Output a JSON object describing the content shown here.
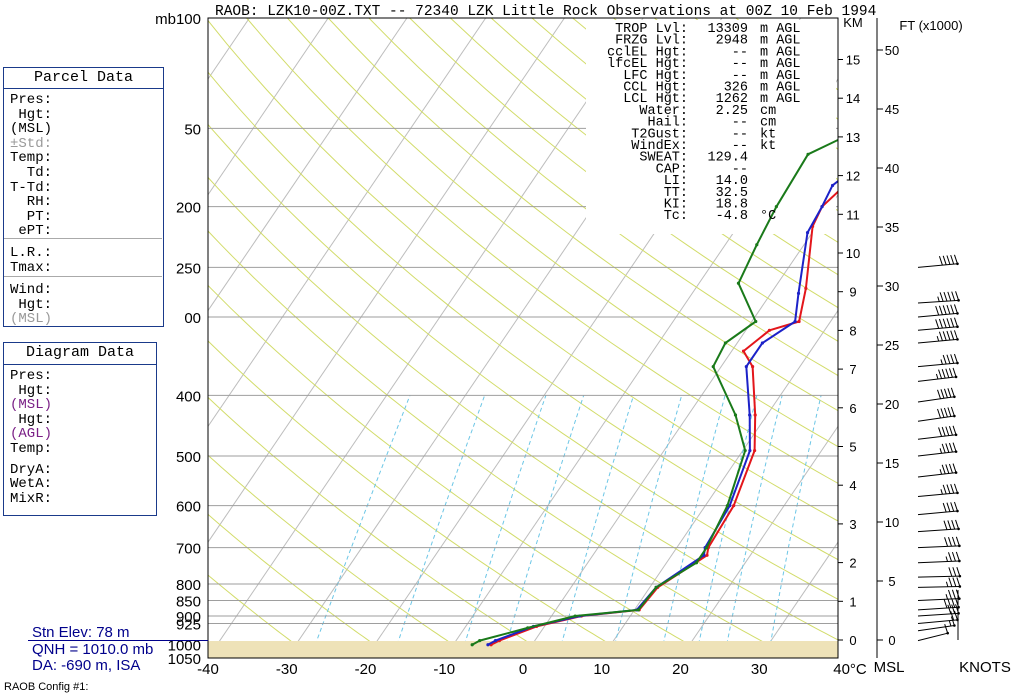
{
  "header": {
    "title": "RAOB:  LZK10-00Z.TXT  --  72340 LZK Little Rock Observations at 00Z 10 Feb 1994"
  },
  "parcel_panel": {
    "title": "Parcel Data",
    "labels": [
      "Pres:",
      " Hgt:",
      "(MSL)",
      "±Std:",
      "Temp:",
      "  Td:",
      "T-Td:",
      "  RH:",
      "  PT:",
      " ePT:",
      "L.R.:",
      "Tmax:",
      "Wind:",
      " Hgt:",
      "(MSL)"
    ]
  },
  "diagram_panel": {
    "title": "Diagram Data",
    "labels": [
      "Pres:",
      " Hgt:",
      "(MSL)",
      " Hgt:",
      "(AGL)",
      "Temp:",
      "DryA:",
      "WetA:",
      "MixR:"
    ]
  },
  "station": {
    "elev": "Stn Elev: 78 m",
    "qnh": "QNH = 1010.0 mb",
    "da": "DA: -690 m, ISA"
  },
  "config_label": "RAOB Config #1:",
  "indices": [
    {
      "label": "TROP Lvl:",
      "value": "13309",
      "unit": "m AGL"
    },
    {
      "label": "FRZG Lvl:",
      "value": "2948",
      "unit": "m AGL"
    },
    {
      "label": "cclEL Hgt:",
      "value": "--",
      "unit": "m AGL"
    },
    {
      "label": "lfcEL Hgt:",
      "value": "--",
      "unit": "m AGL"
    },
    {
      "label": "LFC Hgt:",
      "value": "--",
      "unit": "m AGL"
    },
    {
      "label": "CCL Hgt:",
      "value": "326",
      "unit": "m AGL"
    },
    {
      "label": "LCL Hgt:",
      "value": "1262",
      "unit": "m AGL"
    },
    {
      "label": "Water:",
      "value": "2.25",
      "unit": "cm"
    },
    {
      "label": "Hail:",
      "value": "--",
      "unit": "cm"
    },
    {
      "label": "T2Gust:",
      "value": "--",
      "unit": "kt"
    },
    {
      "label": "WindEx:",
      "value": "--",
      "unit": "kt"
    },
    {
      "label": "SWEAT:",
      "value": "129.4",
      "unit": ""
    },
    {
      "label": "CAP:",
      "value": "--",
      "unit": ""
    },
    {
      "label": "LI:",
      "value": "14.0",
      "unit": ""
    },
    {
      "label": "TT:",
      "value": "32.5",
      "unit": ""
    },
    {
      "label": "KI:",
      "value": "18.8",
      "unit": ""
    },
    {
      "label": "Tc:",
      "value": "-4.8",
      "unit": "°C"
    }
  ],
  "chart_data": {
    "type": "line",
    "title": "",
    "xlabel": "°C",
    "ylabel": "mb",
    "xlim": [
      -40,
      40
    ],
    "ylim": [
      1050,
      100
    ],
    "x_ticks": [
      "-40",
      "-30",
      "-20",
      "-10",
      "0",
      "10",
      "20",
      "30",
      "40°C"
    ],
    "p_ticks": [
      {
        "p": 100,
        "label": "mb100"
      },
      {
        "p": 150,
        "label": "50"
      },
      {
        "p": 200,
        "label": "200"
      },
      {
        "p": 250,
        "label": "250"
      },
      {
        "p": 300,
        "label": "00"
      },
      {
        "p": 400,
        "label": "400"
      },
      {
        "p": 500,
        "label": "500"
      },
      {
        "p": 600,
        "label": "600"
      },
      {
        "p": 700,
        "label": "700"
      },
      {
        "p": 800,
        "label": "800"
      },
      {
        "p": 850,
        "label": "850"
      },
      {
        "p": 900,
        "label": "900"
      },
      {
        "p": 925,
        "label": "925"
      },
      {
        "p": 1000,
        "label": "1000"
      },
      {
        "p": 1050,
        "label": "1050"
      }
    ],
    "km_ticks": [
      "KM",
      "15",
      "14",
      "13",
      "12",
      "11",
      "10",
      "9",
      "8",
      "7",
      "6",
      "5",
      "4",
      "3",
      "2",
      "1",
      "0"
    ],
    "ft_ticks": [
      "FT (x1000)",
      "50",
      "45",
      "40",
      "35",
      "30",
      "25",
      "20",
      "15",
      "10",
      "5",
      "0"
    ],
    "bottom_labels": {
      "msl": "MSL",
      "knots": "KNOTS"
    },
    "series": [
      {
        "color": "#e3161b",
        "x": [
          -5.2,
          -4.5,
          -1.0,
          3.8,
          10.6,
          11.0,
          14.5,
          14.0,
          13.6,
          11.5,
          8.5,
          4.0,
          1.5,
          3.0,
          6.0,
          4.0,
          -0.5,
          -1.0,
          2.0,
          3.5
        ],
        "p": [
          1000,
          985,
          935,
          900,
          880,
          810,
          720,
          700,
          600,
          490,
          430,
          360,
          340,
          315,
          305,
          270,
          215,
          200,
          160,
          145
        ]
      },
      {
        "color": "#1c22c8",
        "x": [
          -5.6,
          -5.0,
          -1.4,
          3.6,
          10.3,
          10.8,
          14.1,
          13.6,
          13.1,
          10.9,
          7.8,
          3.2,
          3.2,
          5.5,
          3.5,
          -0.6,
          -1.0,
          -1.5,
          1.5,
          3.8
        ],
        "p": [
          1000,
          985,
          935,
          900,
          880,
          810,
          720,
          700,
          600,
          490,
          430,
          360,
          330,
          305,
          275,
          220,
          200,
          185,
          160,
          145
        ]
      },
      {
        "color": "#1a7a1a",
        "x": [
          -7.6,
          -7.0,
          -2.0,
          3.0,
          10.5,
          10.8,
          13.8,
          13.8,
          12.8,
          10.3,
          6.0,
          -1.0,
          -1.5,
          0.5,
          -5.0,
          -6.0,
          -6.8,
          -7.3,
          -1.0,
          -2.3
        ],
        "p": [
          1000,
          985,
          940,
          900,
          880,
          810,
          740,
          700,
          600,
          490,
          430,
          360,
          330,
          305,
          265,
          230,
          200,
          165,
          145,
          140
        ]
      }
    ],
    "wind_barbs": [
      {
        "p": 985,
        "dir": 225,
        "kt": 10
      },
      {
        "p": 950,
        "dir": 240,
        "kt": 15
      },
      {
        "p": 925,
        "dir": 250,
        "kt": 20
      },
      {
        "p": 900,
        "dir": 255,
        "kt": 30
      },
      {
        "p": 880,
        "dir": 255,
        "kt": 40
      },
      {
        "p": 850,
        "dir": 260,
        "kt": 35
      },
      {
        "p": 810,
        "dir": 265,
        "kt": 35
      },
      {
        "p": 780,
        "dir": 265,
        "kt": 30
      },
      {
        "p": 740,
        "dir": 260,
        "kt": 35
      },
      {
        "p": 700,
        "dir": 260,
        "kt": 40
      },
      {
        "p": 660,
        "dir": 255,
        "kt": 40
      },
      {
        "p": 620,
        "dir": 250,
        "kt": 40
      },
      {
        "p": 580,
        "dir": 250,
        "kt": 45
      },
      {
        "p": 540,
        "dir": 245,
        "kt": 45
      },
      {
        "p": 500,
        "dir": 245,
        "kt": 45
      },
      {
        "p": 470,
        "dir": 245,
        "kt": 50
      },
      {
        "p": 440,
        "dir": 240,
        "kt": 50
      },
      {
        "p": 410,
        "dir": 240,
        "kt": 50
      },
      {
        "p": 380,
        "dir": 245,
        "kt": 55
      },
      {
        "p": 360,
        "dir": 250,
        "kt": 45
      },
      {
        "p": 330,
        "dir": 250,
        "kt": 55
      },
      {
        "p": 315,
        "dir": 250,
        "kt": 60
      },
      {
        "p": 300,
        "dir": 250,
        "kt": 60
      },
      {
        "p": 285,
        "dir": 255,
        "kt": 55
      },
      {
        "p": 250,
        "dir": 250,
        "kt": 50
      }
    ]
  }
}
